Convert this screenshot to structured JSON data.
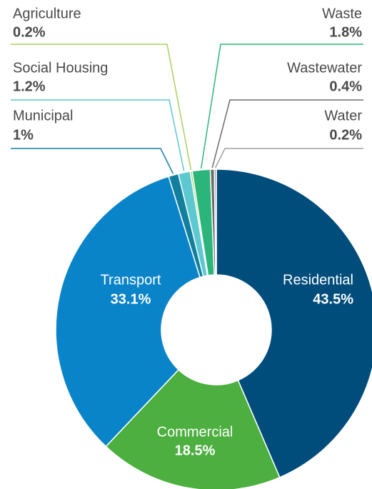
{
  "chart_data": {
    "type": "donut",
    "categories": [
      "Residential",
      "Commercial",
      "Transport",
      "Municipal",
      "Social Housing",
      "Agriculture",
      "Waste",
      "Wastewater",
      "Water"
    ],
    "values": [
      43.5,
      18.5,
      33.1,
      1,
      1.2,
      0.2,
      1.8,
      0.4,
      0.2
    ],
    "value_labels": [
      "43.5%",
      "18.5%",
      "33.1%",
      "1%",
      "1.2%",
      "0.2%",
      "1.8%",
      "0.4%",
      "0.2%"
    ],
    "colors": [
      "#004d7c",
      "#4caf3f",
      "#0a84c9",
      "#137f9e",
      "#5cc8d0",
      "#a9d05c",
      "#2bb57a",
      "#6b6b6b",
      "#a0a0a0"
    ]
  }
}
